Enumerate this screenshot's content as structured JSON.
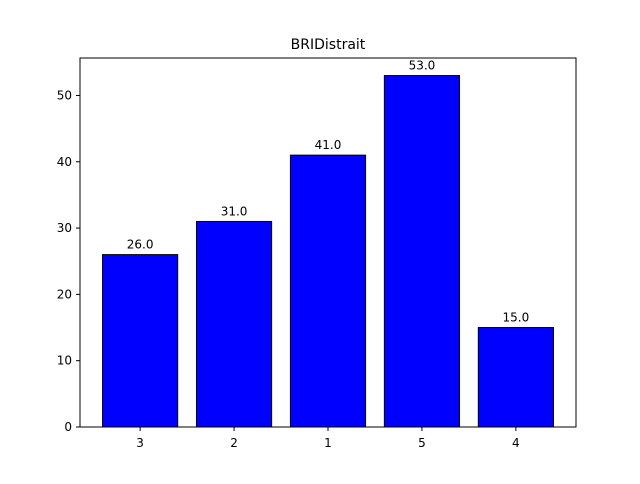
{
  "chart_data": {
    "type": "bar",
    "title": "BRIDistrait",
    "xlabel": "",
    "ylabel": "",
    "categories": [
      "3",
      "2",
      "1",
      "5",
      "4"
    ],
    "values": [
      26.0,
      31.0,
      41.0,
      53.0,
      15.0
    ],
    "value_labels": [
      "26.0",
      "31.0",
      "41.0",
      "53.0",
      "15.0"
    ],
    "ylim": [
      0,
      55.65
    ],
    "yticks": [
      0,
      10,
      20,
      30,
      40,
      50
    ],
    "ytick_labels": [
      "0",
      "10",
      "20",
      "30",
      "40",
      "50"
    ],
    "bar_color": "#0000ff",
    "edge_color": "#000000",
    "grid": false,
    "legend": "none"
  }
}
